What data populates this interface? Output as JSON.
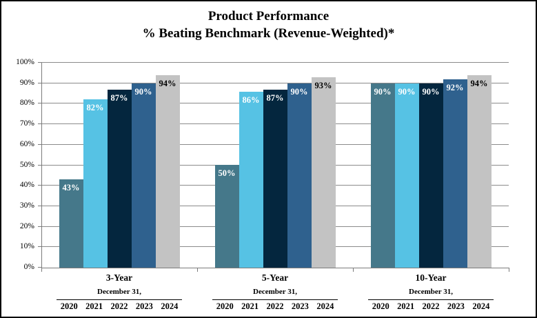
{
  "title": {
    "line1": "Product Performance",
    "line2": "% Beating Benchmark (Revenue-Weighted)*"
  },
  "chart_data": {
    "type": "bar",
    "title": "Product Performance % Beating Benchmark (Revenue-Weighted)*",
    "categories": [
      "3-Year",
      "5-Year",
      "10-Year"
    ],
    "category_sub_label": "December 31,",
    "series": [
      {
        "name": "2020",
        "color": "#45788A",
        "label_color": "#ffffff",
        "values": [
          43,
          50,
          90
        ]
      },
      {
        "name": "2021",
        "color": "#56C2E4",
        "label_color": "#ffffff",
        "values": [
          82,
          86,
          90
        ]
      },
      {
        "name": "2022",
        "color": "#04263E",
        "label_color": "#ffffff",
        "values": [
          87,
          87,
          90
        ]
      },
      {
        "name": "2023",
        "color": "#2F618E",
        "label_color": "#ffffff",
        "values": [
          90,
          90,
          92
        ]
      },
      {
        "name": "2024",
        "color": "#C3C3C3",
        "label_color": "#000000",
        "values": [
          94,
          93,
          94
        ]
      }
    ],
    "value_suffix": "%",
    "ylabel": "",
    "xlabel": "",
    "ylim": [
      0,
      100
    ],
    "ytick_step": 10,
    "ytick_labels": [
      "0%",
      "10%",
      "20%",
      "30%",
      "40%",
      "50%",
      "60%",
      "70%",
      "80%",
      "90%",
      "100%"
    ],
    "grid": true,
    "legend": "none",
    "colors": {
      "gridline": "#8a8a8a",
      "axis": "#7a7a7a",
      "frame_border": "#000000",
      "background": "#ffffff"
    }
  }
}
